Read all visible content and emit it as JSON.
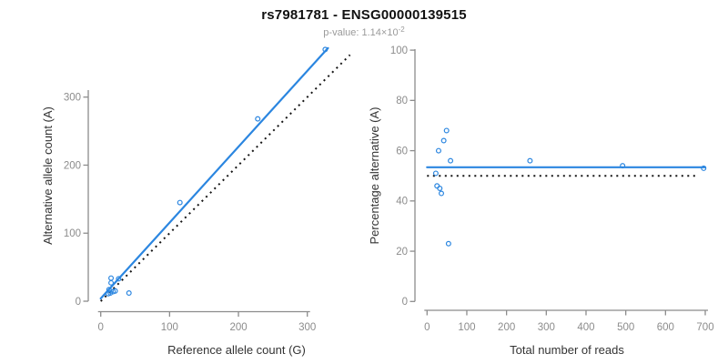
{
  "header": {
    "title": "rs7981781 - ENSG00000139515",
    "subtitle_prefix": "p-value: 1.14×10",
    "subtitle_exponent": "-2"
  },
  "colors": {
    "accent_blue": "#2b86e0",
    "dotted_black": "#151515",
    "axis_gray": "#8c8c8c",
    "tick_label_gray": "#8c8c8c",
    "axis_title_dark": "#333333"
  },
  "chart_data": [
    {
      "type": "scatter",
      "xlabel": "Reference allele count (G)",
      "ylabel": "Alternative allele count (A)",
      "xticks": [
        0,
        100,
        200,
        300
      ],
      "yticks": [
        0,
        100,
        200,
        300
      ],
      "xlim": [
        0,
        362
      ],
      "ylim": [
        0,
        378
      ],
      "grid": false,
      "points": [
        [
          11,
          11
        ],
        [
          14,
          12
        ],
        [
          18,
          14
        ],
        [
          21,
          15
        ],
        [
          12,
          17
        ],
        [
          15,
          27
        ],
        [
          15,
          34
        ],
        [
          26,
          33
        ],
        [
          41,
          12
        ],
        [
          115,
          145
        ],
        [
          228,
          268
        ],
        [
          326,
          370
        ]
      ],
      "fit_line": {
        "x1": 0,
        "y1": 4,
        "x2": 330,
        "y2": 372,
        "style": "solid"
      },
      "identity_line": {
        "x1": 0,
        "y1": 0,
        "x2": 362,
        "y2": 362,
        "style": "dotted"
      }
    },
    {
      "type": "scatter",
      "xlabel": "Total number of reads",
      "ylabel": "Percentage alternative (A)",
      "xticks": [
        0,
        100,
        200,
        300,
        400,
        500,
        600,
        700
      ],
      "yticks": [
        0,
        20,
        40,
        60,
        80,
        100
      ],
      "xlim": [
        0,
        700
      ],
      "ylim": [
        0,
        100
      ],
      "grid": false,
      "points": [
        [
          22,
          51
        ],
        [
          25,
          46
        ],
        [
          29,
          60
        ],
        [
          32,
          45
        ],
        [
          36,
          43
        ],
        [
          42,
          64
        ],
        [
          49,
          68
        ],
        [
          54,
          23
        ],
        [
          59,
          56
        ],
        [
          259,
          56
        ],
        [
          492,
          54
        ],
        [
          696,
          53
        ]
      ],
      "fit_line": {
        "x1": 0,
        "y1": 53.4,
        "x2": 700,
        "y2": 53.4,
        "style": "solid"
      },
      "identity_line": {
        "x1": 0,
        "y1": 50,
        "x2": 683,
        "y2": 50,
        "style": "dotted"
      }
    }
  ]
}
